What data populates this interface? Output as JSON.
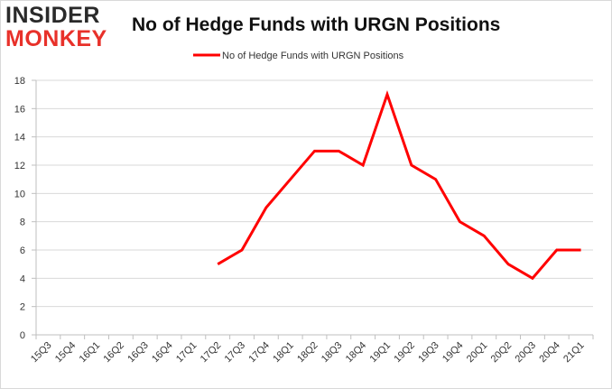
{
  "logo": {
    "line1": "INSIDER",
    "line2": "MONKEY"
  },
  "chart_data": {
    "type": "line",
    "title": "No of Hedge Funds with URGN Positions",
    "xlabel": "",
    "ylabel": "",
    "categories": [
      "15Q3",
      "15Q4",
      "16Q1",
      "16Q2",
      "16Q3",
      "16Q4",
      "17Q1",
      "17Q2",
      "17Q3",
      "17Q4",
      "18Q1",
      "18Q2",
      "18Q3",
      "18Q4",
      "19Q1",
      "19Q2",
      "19Q3",
      "19Q4",
      "20Q1",
      "20Q2",
      "20Q3",
      "20Q4",
      "21Q1"
    ],
    "series": [
      {
        "name": "No of Hedge Funds with URGN Positions",
        "color": "#ff0000",
        "values": [
          null,
          null,
          null,
          null,
          null,
          null,
          null,
          5,
          6,
          9,
          11,
          13,
          13,
          12,
          17,
          12,
          11,
          8,
          7,
          5,
          4,
          6,
          6
        ]
      }
    ],
    "ylim": [
      0,
      18
    ],
    "yticks": [
      "0",
      "2",
      "4",
      "6",
      "8",
      "10",
      "12",
      "14",
      "16",
      "18"
    ],
    "grid": true,
    "legend": "top-center"
  }
}
